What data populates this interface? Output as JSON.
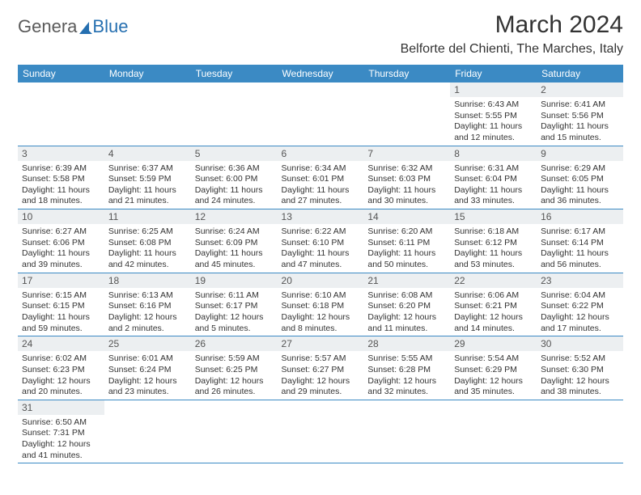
{
  "logo": {
    "text1": "Genera",
    "text2": "Blue"
  },
  "title": "March 2024",
  "location": "Belforte del Chienti, The Marches, Italy",
  "colors": {
    "header_bg": "#3b8ac4",
    "header_fg": "#ffffff",
    "daynum_bg": "#eceff1",
    "row_border": "#3b8ac4",
    "logo_gray": "#5a5a5a",
    "logo_blue": "#256fb0"
  },
  "weekdays": [
    "Sunday",
    "Monday",
    "Tuesday",
    "Wednesday",
    "Thursday",
    "Friday",
    "Saturday"
  ],
  "weeks": [
    [
      null,
      null,
      null,
      null,
      null,
      {
        "n": "1",
        "sunrise": "6:43 AM",
        "sunset": "5:55 PM",
        "daylight": "11 hours and 12 minutes."
      },
      {
        "n": "2",
        "sunrise": "6:41 AM",
        "sunset": "5:56 PM",
        "daylight": "11 hours and 15 minutes."
      }
    ],
    [
      {
        "n": "3",
        "sunrise": "6:39 AM",
        "sunset": "5:58 PM",
        "daylight": "11 hours and 18 minutes."
      },
      {
        "n": "4",
        "sunrise": "6:37 AM",
        "sunset": "5:59 PM",
        "daylight": "11 hours and 21 minutes."
      },
      {
        "n": "5",
        "sunrise": "6:36 AM",
        "sunset": "6:00 PM",
        "daylight": "11 hours and 24 minutes."
      },
      {
        "n": "6",
        "sunrise": "6:34 AM",
        "sunset": "6:01 PM",
        "daylight": "11 hours and 27 minutes."
      },
      {
        "n": "7",
        "sunrise": "6:32 AM",
        "sunset": "6:03 PM",
        "daylight": "11 hours and 30 minutes."
      },
      {
        "n": "8",
        "sunrise": "6:31 AM",
        "sunset": "6:04 PM",
        "daylight": "11 hours and 33 minutes."
      },
      {
        "n": "9",
        "sunrise": "6:29 AM",
        "sunset": "6:05 PM",
        "daylight": "11 hours and 36 minutes."
      }
    ],
    [
      {
        "n": "10",
        "sunrise": "6:27 AM",
        "sunset": "6:06 PM",
        "daylight": "11 hours and 39 minutes."
      },
      {
        "n": "11",
        "sunrise": "6:25 AM",
        "sunset": "6:08 PM",
        "daylight": "11 hours and 42 minutes."
      },
      {
        "n": "12",
        "sunrise": "6:24 AM",
        "sunset": "6:09 PM",
        "daylight": "11 hours and 45 minutes."
      },
      {
        "n": "13",
        "sunrise": "6:22 AM",
        "sunset": "6:10 PM",
        "daylight": "11 hours and 47 minutes."
      },
      {
        "n": "14",
        "sunrise": "6:20 AM",
        "sunset": "6:11 PM",
        "daylight": "11 hours and 50 minutes."
      },
      {
        "n": "15",
        "sunrise": "6:18 AM",
        "sunset": "6:12 PM",
        "daylight": "11 hours and 53 minutes."
      },
      {
        "n": "16",
        "sunrise": "6:17 AM",
        "sunset": "6:14 PM",
        "daylight": "11 hours and 56 minutes."
      }
    ],
    [
      {
        "n": "17",
        "sunrise": "6:15 AM",
        "sunset": "6:15 PM",
        "daylight": "11 hours and 59 minutes."
      },
      {
        "n": "18",
        "sunrise": "6:13 AM",
        "sunset": "6:16 PM",
        "daylight": "12 hours and 2 minutes."
      },
      {
        "n": "19",
        "sunrise": "6:11 AM",
        "sunset": "6:17 PM",
        "daylight": "12 hours and 5 minutes."
      },
      {
        "n": "20",
        "sunrise": "6:10 AM",
        "sunset": "6:18 PM",
        "daylight": "12 hours and 8 minutes."
      },
      {
        "n": "21",
        "sunrise": "6:08 AM",
        "sunset": "6:20 PM",
        "daylight": "12 hours and 11 minutes."
      },
      {
        "n": "22",
        "sunrise": "6:06 AM",
        "sunset": "6:21 PM",
        "daylight": "12 hours and 14 minutes."
      },
      {
        "n": "23",
        "sunrise": "6:04 AM",
        "sunset": "6:22 PM",
        "daylight": "12 hours and 17 minutes."
      }
    ],
    [
      {
        "n": "24",
        "sunrise": "6:02 AM",
        "sunset": "6:23 PM",
        "daylight": "12 hours and 20 minutes."
      },
      {
        "n": "25",
        "sunrise": "6:01 AM",
        "sunset": "6:24 PM",
        "daylight": "12 hours and 23 minutes."
      },
      {
        "n": "26",
        "sunrise": "5:59 AM",
        "sunset": "6:25 PM",
        "daylight": "12 hours and 26 minutes."
      },
      {
        "n": "27",
        "sunrise": "5:57 AM",
        "sunset": "6:27 PM",
        "daylight": "12 hours and 29 minutes."
      },
      {
        "n": "28",
        "sunrise": "5:55 AM",
        "sunset": "6:28 PM",
        "daylight": "12 hours and 32 minutes."
      },
      {
        "n": "29",
        "sunrise": "5:54 AM",
        "sunset": "6:29 PM",
        "daylight": "12 hours and 35 minutes."
      },
      {
        "n": "30",
        "sunrise": "5:52 AM",
        "sunset": "6:30 PM",
        "daylight": "12 hours and 38 minutes."
      }
    ],
    [
      {
        "n": "31",
        "sunrise": "6:50 AM",
        "sunset": "7:31 PM",
        "daylight": "12 hours and 41 minutes."
      },
      null,
      null,
      null,
      null,
      null,
      null
    ]
  ],
  "labels": {
    "sunrise": "Sunrise: ",
    "sunset": "Sunset: ",
    "daylight": "Daylight: "
  }
}
